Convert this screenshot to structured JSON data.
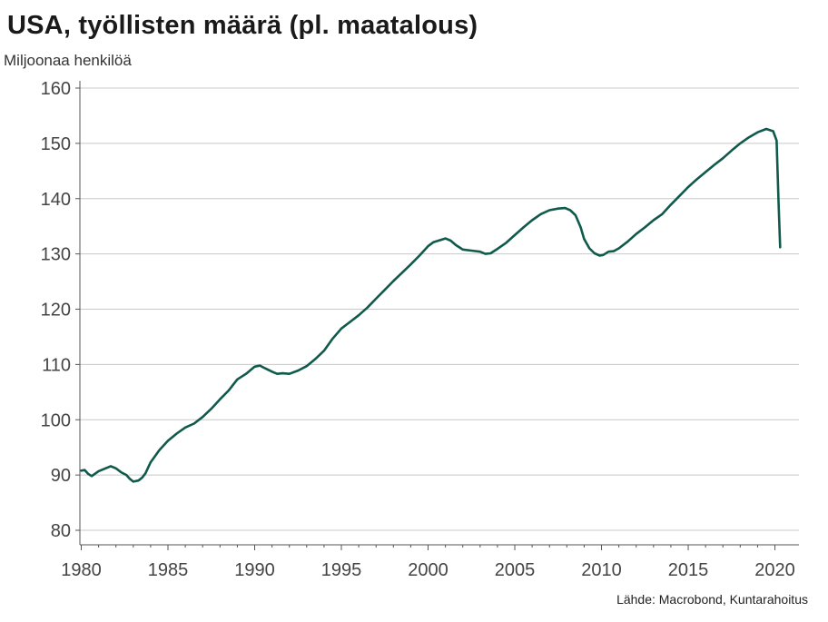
{
  "chart_data": {
    "type": "line",
    "title": "USA, työllisten määrä (pl. maatalous)",
    "ylabel": "Miljoonaa henkilöä",
    "source": "Lähde: Macrobond, Kuntarahoitus",
    "xlim": [
      1980,
      2020.6
    ],
    "ylim": [
      80,
      160
    ],
    "x_ticks": [
      1980,
      1985,
      1990,
      1995,
      2000,
      2005,
      2010,
      2015,
      2020
    ],
    "y_ticks": [
      80,
      90,
      100,
      110,
      120,
      130,
      140,
      150,
      160
    ],
    "grid": "horizontal",
    "colors": {
      "line": "#0f5a4a",
      "grid": "#c8c8c8",
      "axis": "#555555"
    },
    "series": [
      {
        "x": [
          1980.0,
          1980.2,
          1980.4,
          1980.6,
          1981.0,
          1981.4,
          1981.7,
          1982.0,
          1982.3,
          1982.6,
          1982.8,
          1983.0,
          1983.3,
          1983.5,
          1983.7,
          1984.0,
          1984.5,
          1985.0,
          1985.5,
          1986.0,
          1986.5,
          1987.0,
          1987.5,
          1988.0,
          1988.5,
          1989.0,
          1989.5,
          1990.0,
          1990.3,
          1990.6,
          1991.0,
          1991.3,
          1991.6,
          1992.0,
          1992.5,
          1993.0,
          1993.5,
          1994.0,
          1994.5,
          1995.0,
          1995.5,
          1996.0,
          1996.5,
          1997.0,
          1997.5,
          1998.0,
          1998.5,
          1999.0,
          1999.5,
          2000.0,
          2000.3,
          2000.6,
          2001.0,
          2001.3,
          2001.6,
          2002.0,
          2002.5,
          2003.0,
          2003.3,
          2003.6,
          2004.0,
          2004.5,
          2005.0,
          2005.5,
          2006.0,
          2006.5,
          2007.0,
          2007.5,
          2007.9,
          2008.2,
          2008.5,
          2008.8,
          2009.0,
          2009.3,
          2009.6,
          2009.9,
          2010.1,
          2010.4,
          2010.7,
          2011.0,
          2011.5,
          2012.0,
          2012.5,
          2013.0,
          2013.5,
          2014.0,
          2014.5,
          2015.0,
          2015.5,
          2016.0,
          2016.5,
          2017.0,
          2017.5,
          2018.0,
          2018.5,
          2019.0,
          2019.5,
          2019.9,
          2020.1,
          2020.2,
          2020.3
        ],
        "y": [
          90.8,
          90.9,
          90.2,
          89.8,
          90.7,
          91.2,
          91.6,
          91.2,
          90.5,
          90.0,
          89.3,
          88.8,
          89.0,
          89.5,
          90.3,
          92.3,
          94.5,
          96.2,
          97.5,
          98.6,
          99.3,
          100.5,
          102.0,
          103.7,
          105.3,
          107.3,
          108.3,
          109.6,
          109.8,
          109.3,
          108.7,
          108.3,
          108.4,
          108.3,
          108.9,
          109.7,
          111.0,
          112.5,
          114.7,
          116.5,
          117.7,
          118.9,
          120.3,
          121.9,
          123.5,
          125.1,
          126.6,
          128.1,
          129.7,
          131.4,
          132.1,
          132.4,
          132.8,
          132.4,
          131.6,
          130.8,
          130.6,
          130.4,
          130.0,
          130.1,
          130.9,
          132.0,
          133.4,
          134.8,
          136.1,
          137.2,
          137.9,
          138.2,
          138.3,
          137.9,
          137.0,
          134.8,
          132.7,
          131.0,
          130.1,
          129.7,
          129.8,
          130.4,
          130.5,
          131.0,
          132.2,
          133.6,
          134.8,
          136.1,
          137.2,
          138.9,
          140.5,
          142.1,
          143.5,
          144.8,
          146.1,
          147.3,
          148.7,
          150.0,
          151.1,
          152.0,
          152.6,
          152.2,
          150.5,
          140.0,
          131.2
        ]
      }
    ]
  }
}
